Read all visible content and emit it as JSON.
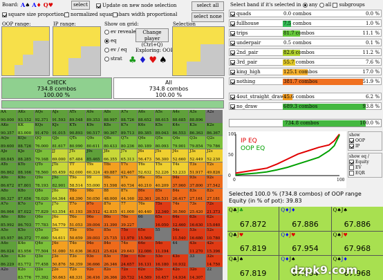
{
  "toolbar": {
    "board_label": "Board:",
    "board_cards": [
      {
        "t": "A",
        "s": "♠",
        "c": "#00f"
      },
      {
        "t": "A",
        "s": "♦",
        "c": "#00f"
      },
      {
        "t": "Q",
        "s": "♥",
        "c": "#d00"
      }
    ],
    "select_label": "select",
    "update_label": "Update on new node selection",
    "sq_prop": "square size proportional",
    "norm_sq": "normalized squares",
    "bars_prop": "bars width proportional"
  },
  "ranges": {
    "oop_label": "OOP range:",
    "ip_label": "IP range:"
  },
  "show_grid": {
    "label": "Show on grid:",
    "options": [
      "ev revealed",
      "eq",
      "ev / eq",
      "strat"
    ],
    "selected": 1
  },
  "change_player": {
    "line1": "Change player",
    "line2": "(Ctrl+Q)"
  },
  "exploring": "Exploring: OOP",
  "suits": [
    {
      "s": "♣",
      "c": "#1a9a1a"
    },
    {
      "s": "♦",
      "c": "#1a1ad0"
    },
    {
      "s": "♥",
      "c": "#e01010"
    },
    {
      "s": "♠",
      "c": "#000"
    }
  ],
  "selection_label": "Selection",
  "select_all": "select all",
  "select_none": "select none",
  "actions": {
    "check": {
      "name": "CHECK",
      "combos": "734.8 combos",
      "pct": "100.00 %"
    },
    "all": {
      "name": "All",
      "combos": "734.8 combos",
      "pct": "100.00 %"
    }
  },
  "select_band": {
    "label": "Select band if it's selected in",
    "opt_any": "any",
    "opt_all": "all",
    "subgroups": "subgroups"
  },
  "hands": [
    {
      "name": "quads",
      "combos": "0.0 combos",
      "pct": "0.0 %",
      "w": 0,
      "col": "#ccc"
    },
    {
      "name": "fullhouse",
      "combos": "7.5 combos",
      "pct": "1.0 %",
      "w": 0.1,
      "col": "#33bb55"
    },
    {
      "name": "trips",
      "combos": "81.7 combos",
      "pct": "11.1 %",
      "w": 0.21,
      "col": "#66c83a"
    },
    {
      "name": "underpair",
      "combos": "0.5 combos",
      "pct": "0.1 %",
      "w": 0,
      "col": "#ccc"
    },
    {
      "name": "2nd_pair",
      "combos": "82.6 combos",
      "pct": "11.2 %",
      "w": 0.21,
      "col": "#b0d030"
    },
    {
      "name": "3rd_pair",
      "combos": "55.7 combos",
      "pct": "7.6 %",
      "w": 0.15,
      "col": "#e0c82a"
    },
    {
      "name": "king_high",
      "combos": "125.1 combos",
      "pct": "17.0 %",
      "w": 0.3,
      "col": "#f4b030"
    },
    {
      "name": "nothing",
      "combos": "381.7 combos",
      "pct": "51.9 %",
      "w": 0.97,
      "col": "#f07020"
    },
    {
      "name": "4out_straight_draw",
      "combos": "45.6 combos",
      "pct": "6.2 %",
      "w": 0.12,
      "col": "#f09a20"
    },
    {
      "name": "no_draw",
      "combos": "689.3 combos",
      "pct": "93.8 %",
      "w": 1,
      "col": "#44b840"
    }
  ],
  "total": {
    "combos": "734.8 combos",
    "pct": "100.0 %"
  },
  "chart_opts": {
    "show": "show",
    "oop": "OOP",
    "ip": "IP",
    "show_eq": "show eq /",
    "equity": "Equity",
    "ev": "EV",
    "eqr": "EQR"
  },
  "chart_data": {
    "type": "line",
    "title": "",
    "xlabel": "",
    "ylabel": "",
    "xlim": [
      0,
      100
    ],
    "ylim": [
      0,
      100
    ],
    "xticks": [
      "0",
      "100"
    ],
    "yticks": [
      "0",
      "50",
      "100"
    ],
    "series": [
      {
        "name": "IP EQ",
        "color": "#e00000",
        "x": [
          0,
          10,
          20,
          30,
          40,
          50,
          60,
          70,
          80,
          90,
          95,
          100
        ],
        "y": [
          6,
          10,
          14,
          18,
          28,
          40,
          52,
          60,
          68,
          74,
          84,
          100
        ]
      },
      {
        "name": "OOP EQ",
        "color": "#00a000",
        "x": [
          0,
          10,
          20,
          30,
          40,
          50,
          60,
          70,
          80,
          90,
          95,
          100
        ],
        "y": [
          2,
          4,
          6,
          9,
          14,
          20,
          28,
          36,
          44,
          60,
          72,
          98
        ]
      }
    ]
  },
  "summary": {
    "line1": "Selected 100.0 % (734.8 combos) of OOP range",
    "line2": "Equity (in % of pot): 39.83"
  },
  "equity_cells": [
    {
      "c1": "Q♣",
      "c2": "J♣",
      "c1c": "#000",
      "c2c": "#1a9a1a",
      "v": "67.872"
    },
    {
      "c1": "Q♦",
      "c2": "J♦",
      "c1c": "#00f",
      "c2c": "#00f",
      "v": "67.886"
    },
    {
      "c1": "Q♠",
      "c2": "J♠",
      "c1c": "#000",
      "c2c": "#000",
      "v": "67.886"
    },
    {
      "c1": "Q♣",
      "c2": "J♥",
      "c1c": "#000",
      "c2c": "#d00",
      "v": "67.819"
    },
    {
      "c1": "Q♦",
      "c2": "J♥",
      "c1c": "#00f",
      "c2c": "#d00",
      "v": "67.954"
    },
    {
      "c1": "Q♠",
      "c2": "J♥",
      "c1c": "#000",
      "c2c": "#d00",
      "v": "67.968"
    },
    {
      "c1": "Q♣",
      "c2": "J♠",
      "c1c": "#000",
      "c2c": "#000",
      "v": "67.819"
    },
    {
      "c1": "Q♦",
      "c2": "J♠",
      "c1c": "#00f",
      "c2c": "#000",
      "v": "67.954"
    },
    {
      "c1": "Q♠",
      "c2": "J♦",
      "c1c": "#000",
      "c2c": "#00f",
      "v": "67.968"
    }
  ],
  "watermark": "dzpk9.com",
  "grid_ranks": [
    "A",
    "K",
    "Q",
    "J",
    "T",
    "9",
    "8",
    "7",
    "6",
    "5",
    "4",
    "3",
    "2"
  ],
  "grid_vals": [
    [
      "",
      "93.152",
      "92.371",
      "91.593",
      "89.548",
      "89.353",
      "88.997",
      "88.726",
      "88.652",
      "88.615",
      "88.685",
      "88.896",
      ""
    ],
    [
      "",
      "",
      "91.470",
      "91.015",
      "90.893",
      "90.517",
      "90.367",
      "89.713",
      "89.385",
      "89.043",
      "86.553",
      "86.363",
      "86.367"
    ],
    [
      "",
      "",
      "",
      "81.617",
      "80.990",
      "80.611",
      "80.433",
      "80.236",
      "80.189",
      "80.093",
      "79.901",
      "79.854",
      "79.786"
    ],
    [
      "",
      "",
      "",
      "68.797",
      "67.484",
      "85.465",
      "66.355",
      "65.313",
      "56.473",
      "56.300",
      "52.660",
      "52.449",
      "52.230"
    ],
    [
      "",
      "",
      "",
      "",
      "62.258",
      "60.324",
      "49.887",
      "42.467",
      "52.632",
      "52.226",
      "53.233",
      "51.917",
      "49.826"
    ],
    [
      "",
      "",
      "",
      "",
      "",
      "59.934",
      "51.598",
      "40.734",
      "40.210",
      "40.209",
      "37.960",
      "37.800",
      "37.542"
    ],
    [
      "",
      "",
      "",
      "",
      "",
      "",
      "54.441",
      "44.160",
      "32.361",
      "26.531",
      "26.417",
      "27.161",
      "27.181"
    ],
    [
      "",
      "",
      "",
      "",
      "",
      "",
      "",
      "30.985",
      "40.440",
      "12.340",
      "30.560",
      "25.420",
      "21.373"
    ],
    [
      "",
      "",
      "",
      "",
      "",
      "",
      "",
      "",
      "27.386",
      "16.050",
      "12.460",
      "16.630",
      "15.040"
    ],
    [
      "",
      "",
      "",
      "",
      "",
      "",
      "",
      "",
      "",
      "",
      "11.540",
      "16.680",
      "10.780"
    ],
    [
      "",
      "",
      "",
      "",
      "",
      "",
      "",
      "",
      "",
      "",
      "",
      "11.270",
      "15.396"
    ],
    [
      "",
      "",
      "",
      "",
      "",
      "",
      "",
      "",
      "",
      "",
      "",
      "",
      "14.750"
    ],
    [
      "",
      "",
      "",
      "",
      "",
      "",
      "",
      "",
      "",
      "",
      "",
      "",
      ""
    ]
  ]
}
